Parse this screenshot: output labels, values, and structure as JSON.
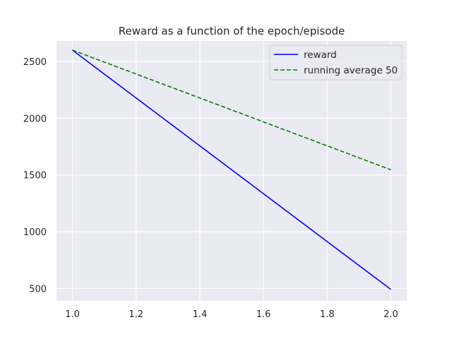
{
  "chart_data": {
    "type": "line",
    "title": "Reward as a function of the epoch/episode",
    "xlabel": "",
    "ylabel": "",
    "xlim": [
      0.95,
      2.05
    ],
    "ylim": [
      390,
      2680
    ],
    "xticks": [
      "1.0",
      "1.2",
      "1.4",
      "1.6",
      "1.8",
      "2.0"
    ],
    "yticks": [
      "500",
      "1000",
      "1500",
      "2000",
      "2500"
    ],
    "grid": true,
    "legend_position": "top-right",
    "background": "#eaeaf2",
    "series": [
      {
        "name": "reward",
        "color": "#0000ff",
        "style": "solid",
        "x": [
          1.0,
          2.0
        ],
        "y": [
          2600,
          490
        ]
      },
      {
        "name": "running average 50",
        "color": "#008000",
        "style": "dashed",
        "x": [
          1.0,
          2.0
        ],
        "y": [
          2600,
          1545
        ]
      }
    ]
  }
}
